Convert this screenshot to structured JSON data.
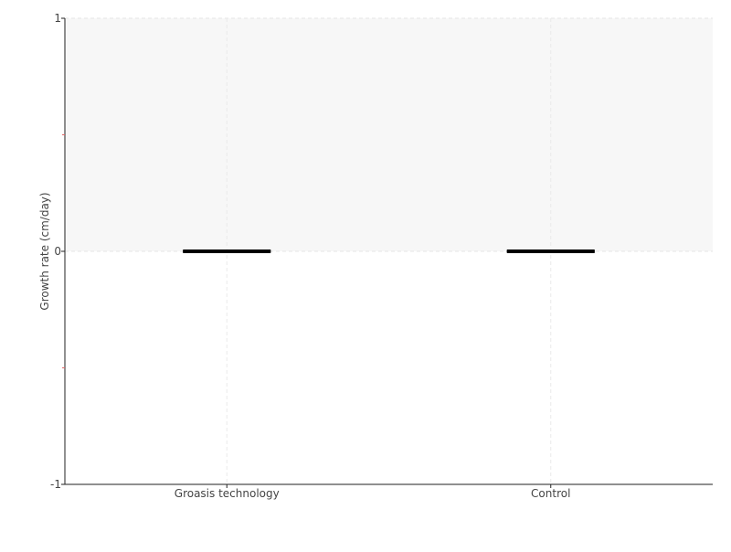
{
  "chart_data": {
    "type": "box",
    "title": "",
    "xlabel": "",
    "ylabel": "Growth rate (cm/day)",
    "ylim": [
      -1,
      1
    ],
    "yticks": [
      "1",
      "0",
      "-1"
    ],
    "categories": [
      "Groasis technology",
      "Control"
    ],
    "boxes": [
      {
        "category": "Groasis technology",
        "min": 0,
        "q1": 0,
        "median": 0,
        "q3": 0,
        "max": 0
      },
      {
        "category": "Control",
        "min": 0,
        "q1": 0,
        "median": 0,
        "q3": 0,
        "max": 0
      }
    ],
    "grid": true,
    "colors": {
      "box": "#000000",
      "shade": "#f7f7f7",
      "axis": "#222222",
      "minor_tick": "#e06666"
    }
  }
}
